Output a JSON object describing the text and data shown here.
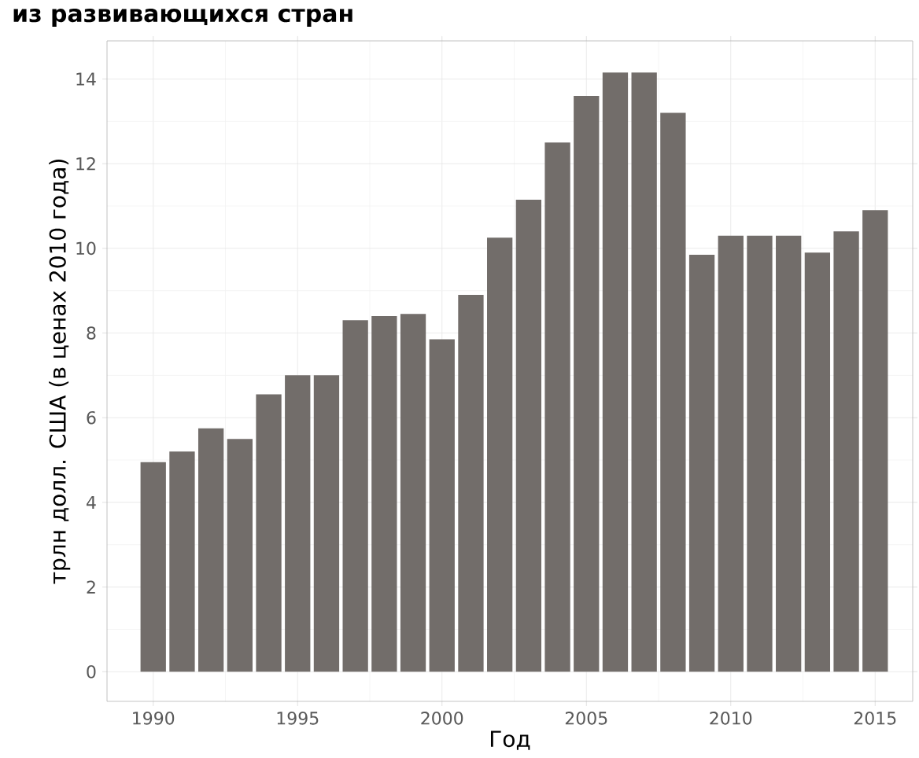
{
  "chart_data": {
    "type": "bar",
    "title": "из развивающихся стран",
    "xlabel": "Год",
    "ylabel": "трлн долл. США (в ценах 2010 года)",
    "x": [
      1990,
      1991,
      1992,
      1993,
      1994,
      1995,
      1996,
      1997,
      1998,
      1999,
      2000,
      2001,
      2002,
      2003,
      2004,
      2005,
      2006,
      2007,
      2008,
      2009,
      2010,
      2011,
      2012,
      2013,
      2014,
      2015
    ],
    "values": [
      4.95,
      5.2,
      5.75,
      5.5,
      6.55,
      7.0,
      7.0,
      8.3,
      8.4,
      8.45,
      7.85,
      8.9,
      10.25,
      11.15,
      12.5,
      13.6,
      14.15,
      14.15,
      13.2,
      9.85,
      10.3,
      10.3,
      10.3,
      9.9,
      10.4,
      10.9
    ],
    "color": "#726d6a",
    "xlim": [
      1988.4,
      2016.3
    ],
    "ylim": [
      -0.7,
      14.9
    ],
    "xticks": [
      1990,
      1995,
      2000,
      2005,
      2010,
      2015
    ],
    "yticks": [
      0,
      2,
      4,
      6,
      8,
      10,
      12,
      14
    ],
    "grid": true
  }
}
